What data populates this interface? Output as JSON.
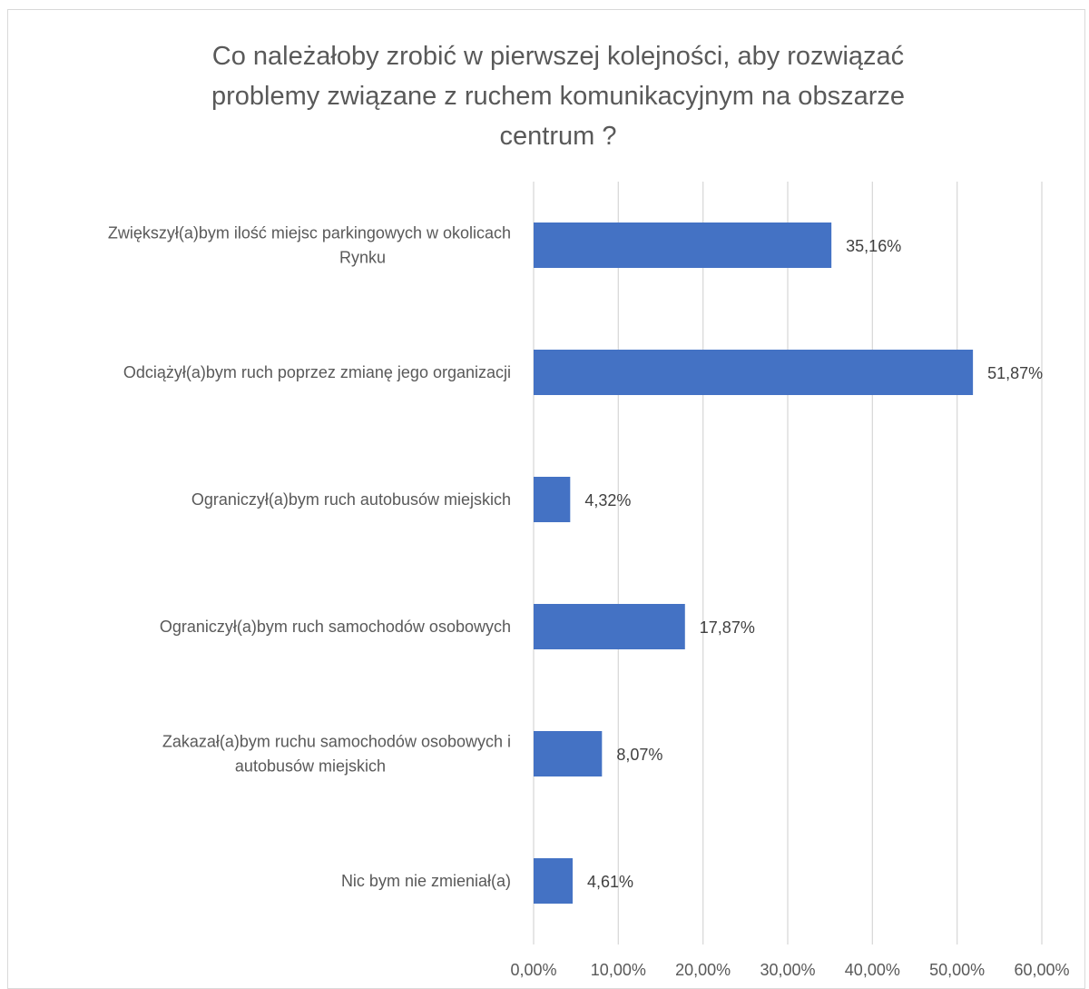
{
  "chart_data": {
    "type": "bar",
    "orientation": "horizontal",
    "title_lines": [
      "Co należałoby zrobić w pierwszej kolejności, aby rozwiązać",
      "problemy związane z ruchem  komunikacyjnym na obszarze",
      "centrum ?"
    ],
    "categories": [
      [
        "Zwiększył(a)bym ilość miejsc parkingowych w okolicach",
        "Rynku"
      ],
      [
        "Odciążył(a)bym ruch poprzez zmianę jego organizacji"
      ],
      [
        "Ograniczył(a)bym ruch autobusów miejskich"
      ],
      [
        "Ograniczył(a)bym ruch samochodów osobowych"
      ],
      [
        "Zakazał(a)bym ruchu samochodów osobowych i",
        "autobusów miejskich"
      ],
      [
        "Nic bym nie zmieniał(a)"
      ]
    ],
    "values": [
      35.16,
      51.87,
      4.32,
      17.87,
      8.07,
      4.61
    ],
    "data_labels": [
      "35,16%",
      "51,87%",
      "4,32%",
      "17,87%",
      "8,07%",
      "4,61%"
    ],
    "x_ticks": [
      "0,00%",
      "10,00%",
      "20,00%",
      "30,00%",
      "40,00%",
      "50,00%",
      "60,00%"
    ],
    "xlim": [
      0,
      60
    ],
    "bar_color": "#4472c4",
    "grid_color": "#d9d9d9",
    "grid": true,
    "legend": "none",
    "xlabel": "",
    "ylabel": ""
  }
}
